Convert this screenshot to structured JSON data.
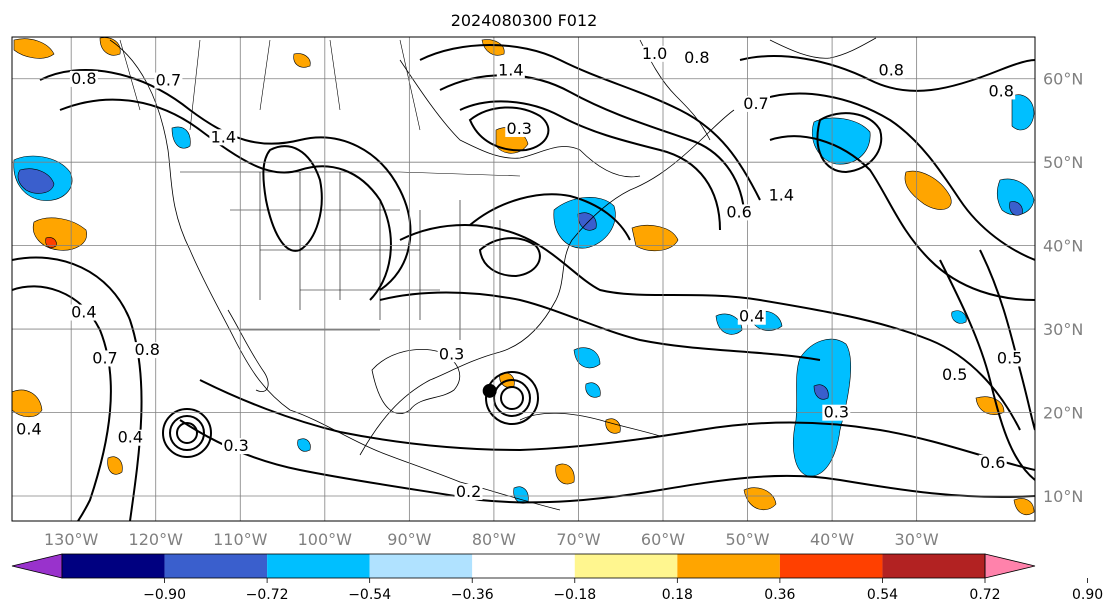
{
  "title": "2024080300 F012",
  "map": {
    "lon_range": [
      -137,
      -16
    ],
    "lat_range": [
      7,
      65
    ],
    "lon_ticks": [
      {
        "value": -130,
        "label": "130°W"
      },
      {
        "value": -120,
        "label": "120°W"
      },
      {
        "value": -110,
        "label": "110°W"
      },
      {
        "value": -100,
        "label": "100°W"
      },
      {
        "value": -90,
        "label": "90°W"
      },
      {
        "value": -80,
        "label": "80°W"
      },
      {
        "value": -70,
        "label": "70°W"
      },
      {
        "value": -60,
        "label": "60°W"
      },
      {
        "value": -50,
        "label": "50°W"
      },
      {
        "value": -40,
        "label": "40°W"
      },
      {
        "value": -30,
        "label": "30°W"
      }
    ],
    "lat_ticks": [
      {
        "value": 60,
        "label": "60°N"
      },
      {
        "value": 50,
        "label": "50°N"
      },
      {
        "value": 40,
        "label": "40°N"
      },
      {
        "value": 30,
        "label": "30°N"
      },
      {
        "value": 20,
        "label": "20°N"
      },
      {
        "value": 10,
        "label": "10°N"
      }
    ],
    "grid": true,
    "storm_center": {
      "lon": -80.5,
      "lat": 22.6
    },
    "contour_labels": [
      {
        "lon": -128.5,
        "lat": 59.5,
        "text": "0.8"
      },
      {
        "lon": -118.5,
        "lat": 59.3,
        "text": "0.7"
      },
      {
        "lon": -128.5,
        "lat": 31.5,
        "text": "0.4"
      },
      {
        "lon": -126,
        "lat": 26,
        "text": "0.7"
      },
      {
        "lon": -121,
        "lat": 27,
        "text": "0.8"
      },
      {
        "lon": -123,
        "lat": 16.5,
        "text": "0.4"
      },
      {
        "lon": -110.5,
        "lat": 15.5,
        "text": "0.3"
      },
      {
        "lon": -135,
        "lat": 17.5,
        "text": "0.4"
      },
      {
        "lon": -112,
        "lat": 52.5,
        "text": "1.4"
      },
      {
        "lon": -85,
        "lat": 26.5,
        "text": "0.3"
      },
      {
        "lon": -78,
        "lat": 60.5,
        "text": "1.4"
      },
      {
        "lon": -77,
        "lat": 53.5,
        "text": "0.3"
      },
      {
        "lon": -61,
        "lat": 62.5,
        "text": "1.0"
      },
      {
        "lon": -56,
        "lat": 62,
        "text": "0.8"
      },
      {
        "lon": -49,
        "lat": 56.5,
        "text": "0.7"
      },
      {
        "lon": -33,
        "lat": 60.5,
        "text": "0.8"
      },
      {
        "lon": -20,
        "lat": 58,
        "text": "0.8"
      },
      {
        "lon": -46,
        "lat": 45.5,
        "text": "1.4"
      },
      {
        "lon": -51,
        "lat": 43.5,
        "text": "0.6"
      },
      {
        "lon": -39.5,
        "lat": 19.5,
        "text": "0.3"
      },
      {
        "lon": -25.5,
        "lat": 24,
        "text": "0.5"
      },
      {
        "lon": -19,
        "lat": 26,
        "text": "0.5"
      },
      {
        "lon": -21,
        "lat": 13.5,
        "text": "0.6"
      },
      {
        "lon": -83,
        "lat": 10,
        "text": "0.2"
      },
      {
        "lon": -49.5,
        "lat": 31,
        "text": "0.4"
      }
    ]
  },
  "colorbar": {
    "colors": [
      "#9932cc",
      "#000080",
      "#3a5fcd",
      "#00bfff",
      "#b0e2ff",
      "#ffffff",
      "#fff68f",
      "#ffa500",
      "#ff4000",
      "#b22222",
      "#ff82ab"
    ],
    "labels": [
      "−0.90",
      "−0.72",
      "−0.54",
      "−0.36",
      "−0.18",
      "0.18",
      "0.36",
      "0.54",
      "0.72",
      "0.90"
    ]
  }
}
